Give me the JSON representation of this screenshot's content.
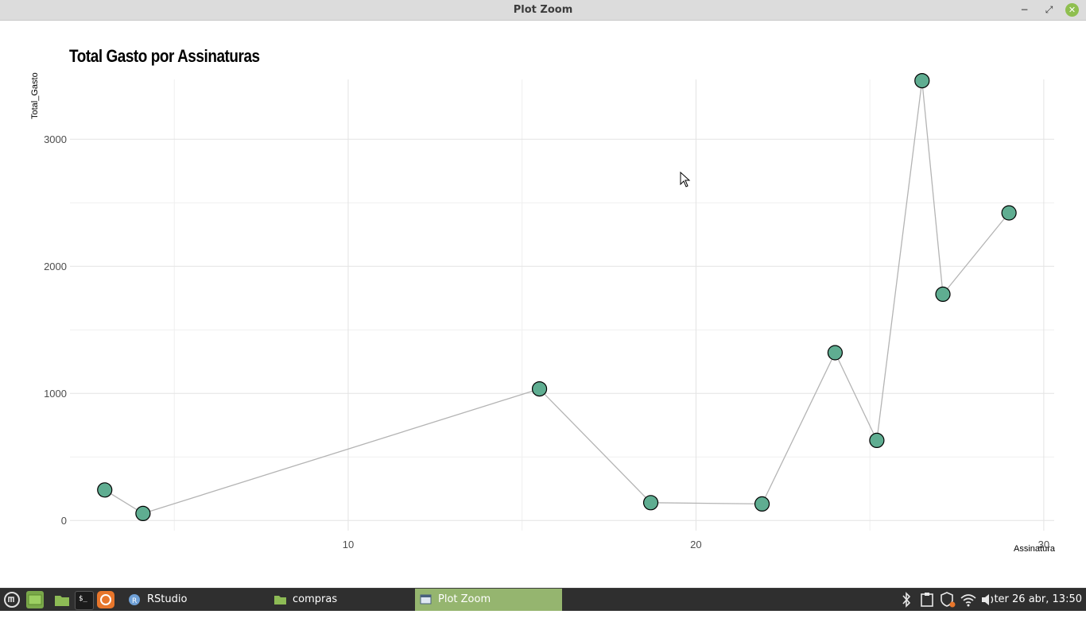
{
  "window": {
    "title": "Plot Zoom",
    "minimize_label": "−",
    "maximize_label": "⤢",
    "close_label": "✕"
  },
  "chart_data": {
    "type": "line",
    "title": "Total Gasto por Assinaturas",
    "xlabel": "Assinatura",
    "ylabel": "Total_Gasto",
    "xlim": [
      2.0,
      30.3
    ],
    "ylim": [
      -30,
      3470
    ],
    "xticks": [
      10,
      20,
      30
    ],
    "yticks": [
      0,
      1000,
      2000,
      3000
    ],
    "grid": true,
    "series": [
      {
        "x": [
          3,
          4.1,
          15.5,
          18.7,
          21.9,
          24,
          25.2,
          26.5,
          27.1,
          29
        ],
        "y": [
          240,
          55,
          1035,
          140,
          130,
          1320,
          630,
          3460,
          1780,
          2420
        ]
      }
    ],
    "colors": {
      "line": "#b4b4b4",
      "point_fill": "#5fad91",
      "point_stroke": "#000000",
      "grid": "#e3e3e3"
    }
  },
  "taskbar": {
    "windows": [
      {
        "label": "RStudio",
        "icon": "r-icon"
      },
      {
        "label": "compras",
        "icon": "folder-icon"
      },
      {
        "label": "Plot Zoom",
        "icon": "window-icon"
      }
    ],
    "clock": "ter 26 abr, 13:50"
  }
}
